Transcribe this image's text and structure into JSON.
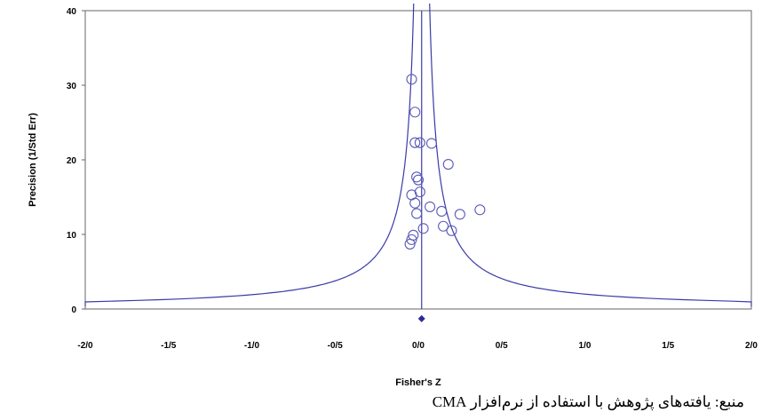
{
  "chart_data": {
    "type": "scatter",
    "xlabel": "Fisher's Z",
    "ylabel": "Precision (1/Std Err)",
    "xlim": [
      -2.0,
      2.0
    ],
    "ylim": [
      0,
      40
    ],
    "x_ticks": [
      "-2/0",
      "-1/5",
      "-1/0",
      "-0/5",
      "0/0",
      "0/5",
      "1/0",
      "1/5",
      "2/0"
    ],
    "x_tick_values": [
      -2.0,
      -1.5,
      -1.0,
      -0.5,
      0.0,
      0.5,
      1.0,
      1.5,
      2.0
    ],
    "y_ticks": [
      "0",
      "10",
      "20",
      "30",
      "40"
    ],
    "y_tick_values": [
      0,
      10,
      20,
      30,
      40
    ],
    "grid": false,
    "summary_effect": 0.02,
    "summary_marker_y": -1.3,
    "funnel_center": 0.02,
    "series": [
      {
        "points": [
          {
            "x": -0.04,
            "y": 30.8
          },
          {
            "x": -0.02,
            "y": 26.4
          },
          {
            "x": -0.02,
            "y": 22.3
          },
          {
            "x": 0.01,
            "y": 22.3
          },
          {
            "x": 0.08,
            "y": 22.2
          },
          {
            "x": 0.18,
            "y": 19.4
          },
          {
            "x": -0.01,
            "y": 17.7
          },
          {
            "x": 0.0,
            "y": 17.3
          },
          {
            "x": 0.01,
            "y": 15.7
          },
          {
            "x": -0.04,
            "y": 15.3
          },
          {
            "x": -0.02,
            "y": 14.2
          },
          {
            "x": 0.07,
            "y": 13.7
          },
          {
            "x": 0.14,
            "y": 13.1
          },
          {
            "x": -0.01,
            "y": 12.8
          },
          {
            "x": 0.25,
            "y": 12.7
          },
          {
            "x": 0.37,
            "y": 13.3
          },
          {
            "x": 0.15,
            "y": 11.1
          },
          {
            "x": 0.2,
            "y": 10.5
          },
          {
            "x": 0.03,
            "y": 10.8
          },
          {
            "x": -0.03,
            "y": 9.9
          },
          {
            "x": -0.04,
            "y": 9.3
          },
          {
            "x": -0.05,
            "y": 8.7
          }
        ]
      }
    ]
  },
  "source_note": "منبع: یافته‌های پژوهش با استفاده از نرم‌افزار CMA",
  "colors": {
    "line": "#3a3aaa",
    "marker": "#5a5ab8",
    "diamond": "#2a2a9a",
    "axis": "#555555"
  }
}
